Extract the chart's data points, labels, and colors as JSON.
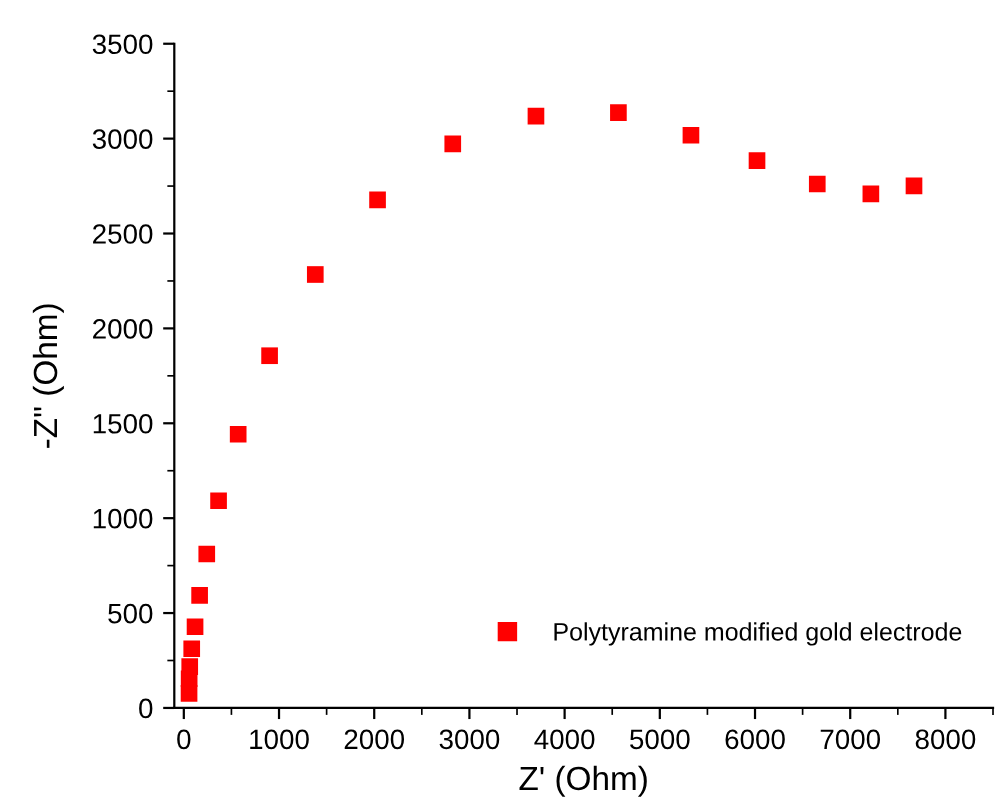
{
  "chart_data": {
    "type": "scatter",
    "xlabel": "Z' (Ohm)",
    "ylabel": "-Z\" (Ohm)",
    "xlim": [
      -100,
      8500
    ],
    "ylim": [
      0,
      3500
    ],
    "xticks": [
      0,
      1000,
      2000,
      3000,
      4000,
      5000,
      6000,
      7000,
      8000
    ],
    "yticks": [
      0,
      500,
      1000,
      1500,
      2000,
      2500,
      3000,
      3500
    ],
    "marker": "square",
    "legend": "bottom right",
    "grid": false,
    "series": [
      {
        "name": "Polytyramine modified gold electrode",
        "color": "#ff0000",
        "x": [
          55,
          56,
          62,
          83,
          118,
          166,
          241,
          365,
          571,
          901,
          1381,
          2035,
          2825,
          3699,
          4565,
          5327,
          6021,
          6654,
          7217,
          7670
        ],
        "values": [
          77,
          154,
          218,
          312,
          428,
          593,
          811,
          1092,
          1442,
          1856,
          2284,
          2677,
          2972,
          3119,
          3137,
          3018,
          2884,
          2761,
          2709,
          2751
        ]
      }
    ]
  }
}
